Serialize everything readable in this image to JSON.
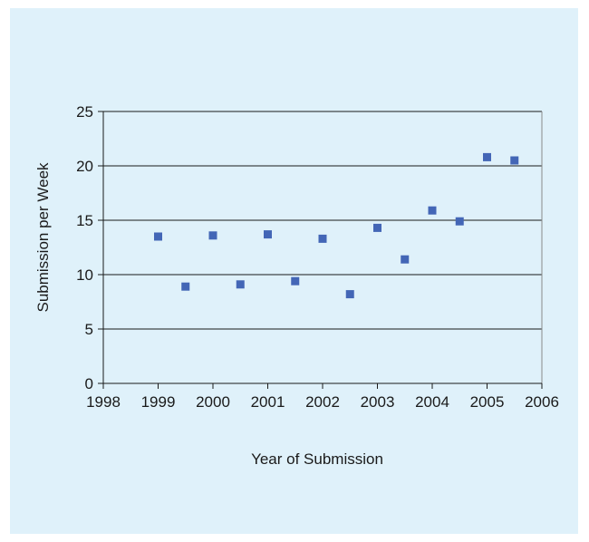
{
  "chart_data": {
    "type": "scatter",
    "title": "",
    "xlabel": "Year of Submission",
    "ylabel": "Submission per Week",
    "xlim": [
      1998,
      2006
    ],
    "ylim": [
      0,
      25
    ],
    "xticks": [
      1998,
      1999,
      2000,
      2001,
      2002,
      2003,
      2004,
      2005,
      2006
    ],
    "yticks": [
      0,
      5,
      10,
      15,
      20,
      25
    ],
    "grid": "horizontal",
    "legend": "none",
    "marker": "square",
    "marker_color": "#4366b6",
    "series": [
      {
        "x": [
          1999.0,
          1999.5,
          2000.0,
          2000.5,
          2001.0,
          2001.5,
          2002.0,
          2002.5,
          2003.0,
          2003.5,
          2004.0,
          2004.5,
          2005.0,
          2005.5
        ],
        "y": [
          13.5,
          8.9,
          13.6,
          9.1,
          13.7,
          9.4,
          13.3,
          8.2,
          14.3,
          11.4,
          15.9,
          14.9,
          20.8,
          20.5
        ]
      }
    ]
  }
}
